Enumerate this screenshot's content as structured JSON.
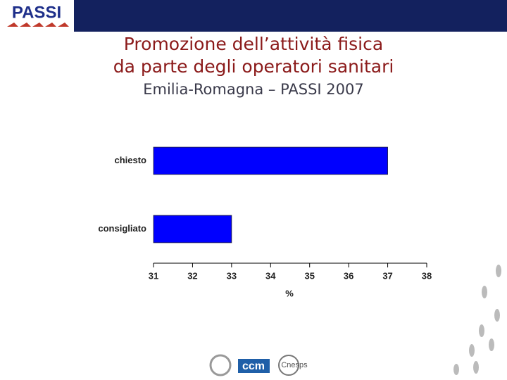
{
  "logo": "PASSI",
  "footer_logos": [
    "ccm",
    "Cnesps"
  ],
  "chart_data": {
    "type": "hbar",
    "title": [
      "Promozione dell’attività fisica",
      "da parte degli operatori sanitari"
    ],
    "subtitle": "Emilia-Romagna – PASSI 2007",
    "categories": [
      "chiesto",
      "consigliato"
    ],
    "values": [
      37,
      33
    ],
    "color": "#0000ff",
    "xlim": [
      31,
      38
    ],
    "xticks": [
      31,
      32,
      33,
      34,
      35,
      36,
      37,
      38
    ],
    "xlabel": "%",
    "grid": false
  }
}
